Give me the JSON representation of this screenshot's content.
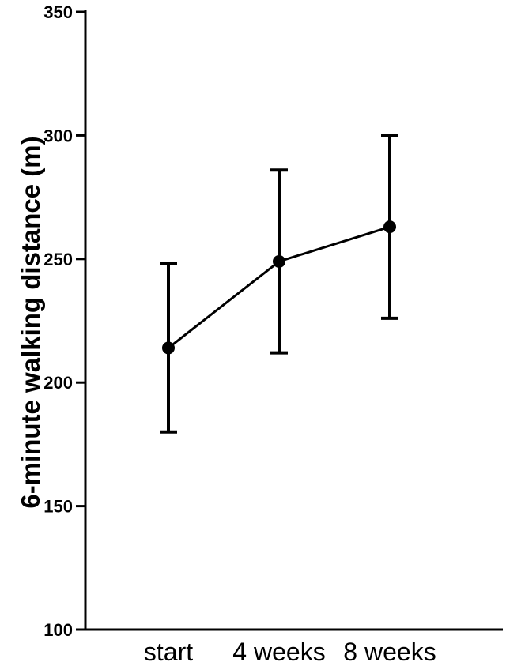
{
  "chart_data": {
    "type": "line",
    "ylabel": "6-minute walking distance (m)",
    "xlabel": "",
    "categories": [
      "start",
      "4 weeks",
      "8 weeks"
    ],
    "ylim": [
      100,
      350
    ],
    "yticks": [
      100,
      150,
      200,
      250,
      300,
      350
    ],
    "grid": false,
    "series": [
      {
        "values": [
          214,
          249,
          263
        ],
        "error_low": [
          180,
          212,
          226
        ],
        "error_high": [
          248,
          286,
          300
        ]
      }
    ]
  }
}
